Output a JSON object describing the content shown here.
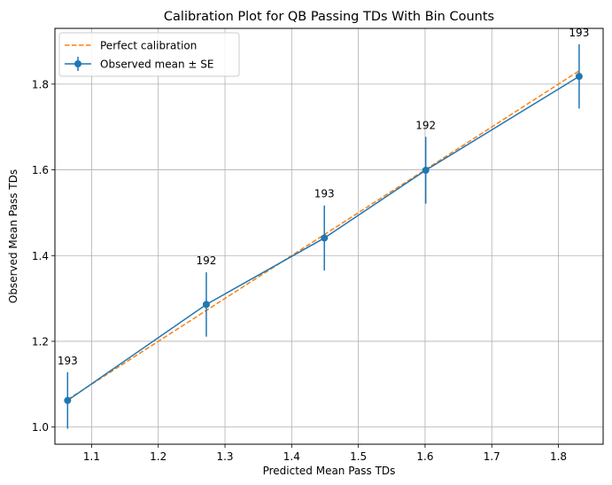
{
  "chart_data": {
    "type": "line",
    "title": "Calibration Plot for QB Passing TDs With Bin Counts",
    "xlabel": "Predicted Mean Pass TDs",
    "ylabel": "Observed Mean Pass TDs",
    "xlim": [
      1.045,
      1.867
    ],
    "ylim": [
      0.96,
      1.93
    ],
    "xticks": [
      1.1,
      1.2,
      1.3,
      1.4,
      1.5,
      1.6,
      1.7,
      1.8
    ],
    "xtick_labels": [
      "1.1",
      "1.2",
      "1.3",
      "1.4",
      "1.5",
      "1.6",
      "1.7",
      "1.8"
    ],
    "yticks": [
      1.0,
      1.2,
      1.4,
      1.6,
      1.8
    ],
    "ytick_labels": [
      "1.0",
      "1.2",
      "1.4",
      "1.6",
      "1.8"
    ],
    "grid": true,
    "legend_position": "top-left",
    "series": [
      {
        "name": "Perfect calibration",
        "style": "dashed",
        "color": "#ff7f0e",
        "x": [
          1.064,
          1.272,
          1.449,
          1.601,
          1.831
        ],
        "y": [
          1.064,
          1.272,
          1.449,
          1.601,
          1.831
        ]
      },
      {
        "name": "Observed mean ± SE",
        "style": "solid-markers-errorbars",
        "color": "#1f77b4",
        "x": [
          1.064,
          1.272,
          1.449,
          1.601,
          1.831
        ],
        "y": [
          1.062,
          1.286,
          1.441,
          1.599,
          1.818
        ],
        "err": [
          0.066,
          0.075,
          0.076,
          0.078,
          0.075
        ],
        "counts": [
          "193",
          "192",
          "193",
          "192",
          "193"
        ]
      }
    ]
  }
}
